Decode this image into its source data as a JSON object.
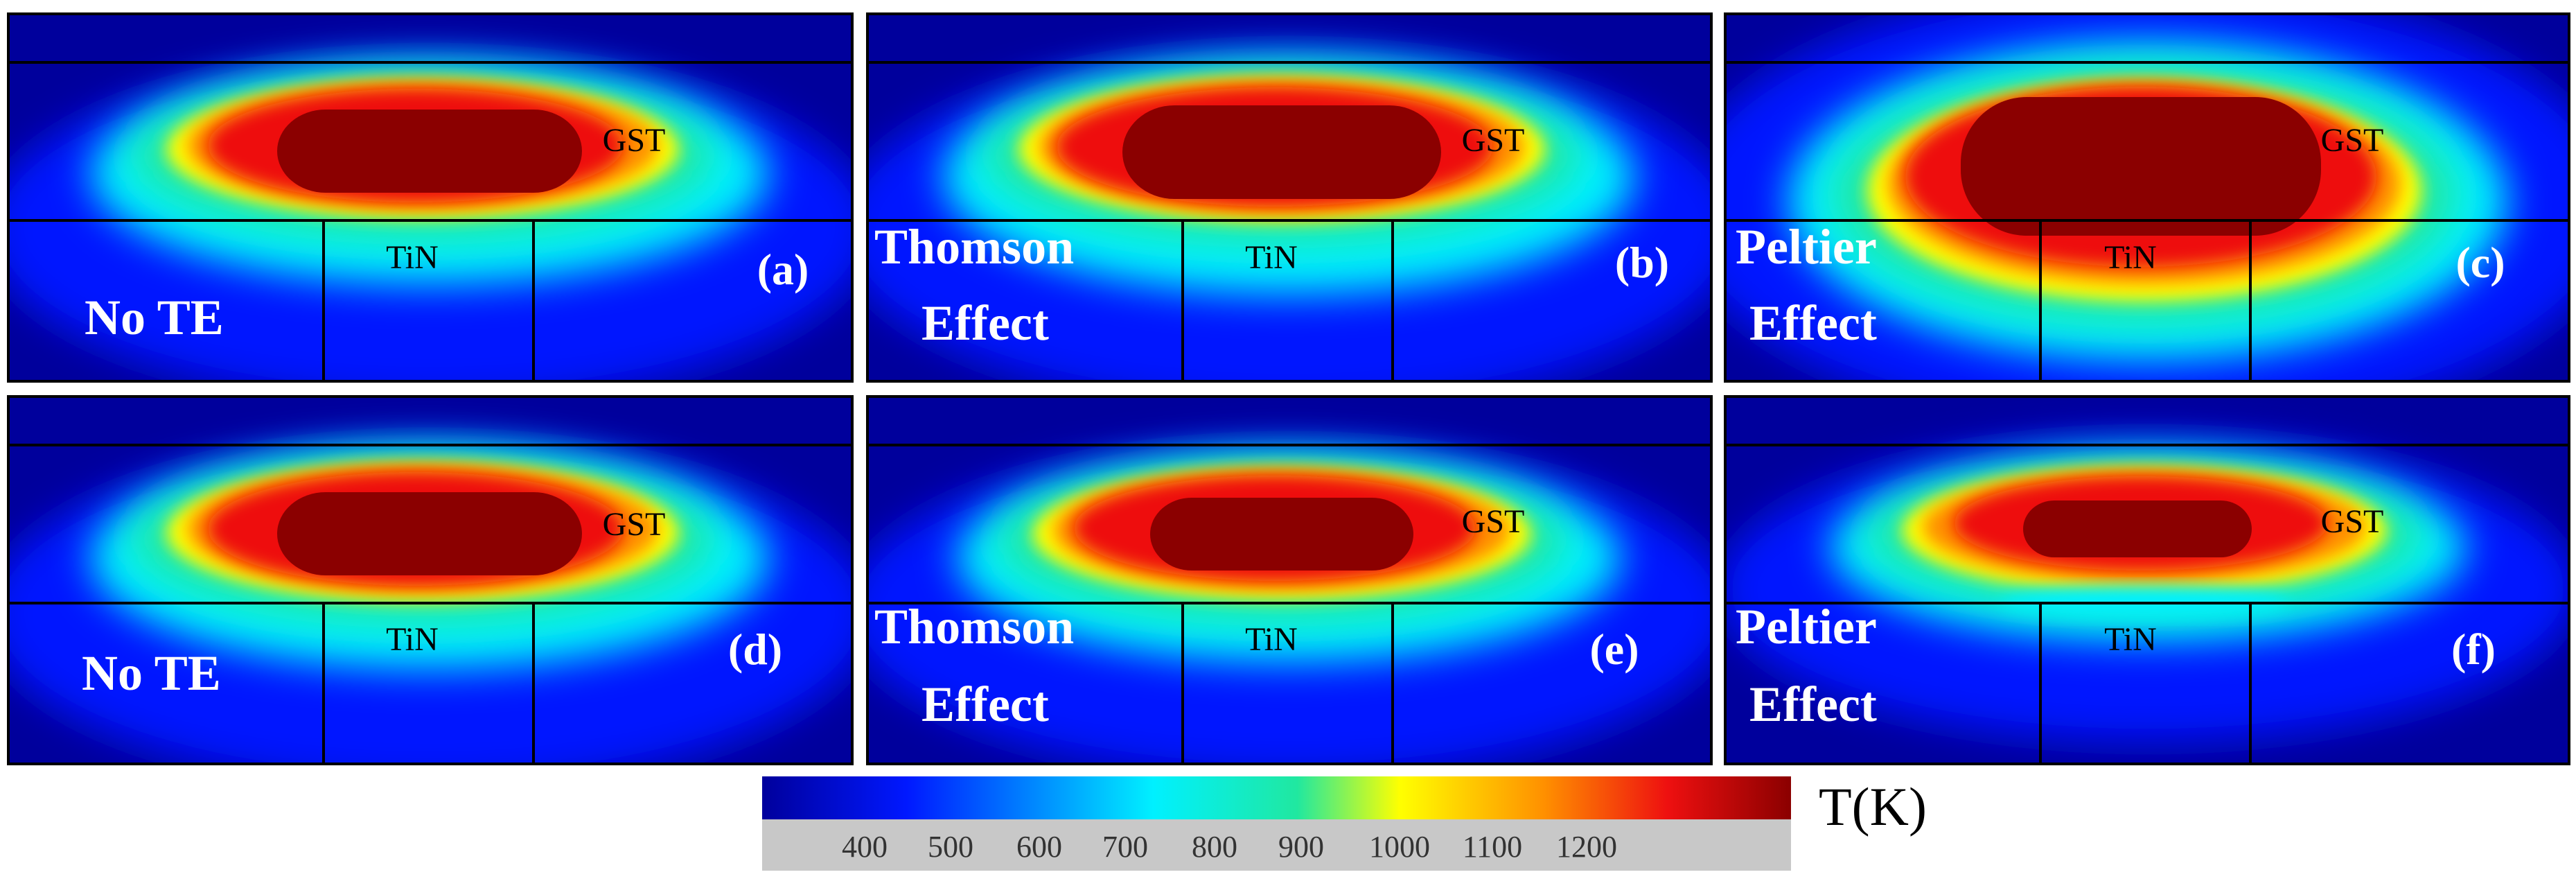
{
  "figure": {
    "colors": {
      "cold": "#00009c",
      "bright_blue": "#0018ff",
      "cyan": "#00f0ff",
      "green": "#20e8a0",
      "yellow": "#ffff00",
      "orange": "#ff9000",
      "red": "#ee1010",
      "hot": "#8b0000",
      "outline": "#000000",
      "white_text": "#ffffff",
      "colorbar_tick_band": "#c8c8c8"
    },
    "panels": [
      {
        "id": "a",
        "tag": "(a)",
        "effect_lines": [
          "No TE"
        ],
        "region_top": "GST",
        "region_bottom": "TiN"
      },
      {
        "id": "b",
        "tag": "(b)",
        "effect_lines": [
          "Thomson",
          "Effect"
        ],
        "region_top": "GST",
        "region_bottom": "TiN"
      },
      {
        "id": "c",
        "tag": "(c)",
        "effect_lines": [
          "Peltier",
          "Effect"
        ],
        "region_top": "GST",
        "region_bottom": "TiN"
      },
      {
        "id": "d",
        "tag": "(d)",
        "effect_lines": [
          "No TE"
        ],
        "region_top": "GST",
        "region_bottom": "TiN"
      },
      {
        "id": "e",
        "tag": "(e)",
        "effect_lines": [
          "Thomson",
          "Effect"
        ],
        "region_top": "GST",
        "region_bottom": "TiN"
      },
      {
        "id": "f",
        "tag": "(f)",
        "effect_lines": [
          "Peltier",
          "Effect"
        ],
        "region_top": "GST",
        "region_bottom": "TiN"
      }
    ],
    "colorbar": {
      "label": "T(K)",
      "ticks": [
        "400",
        "500",
        "600",
        "700",
        "800",
        "900",
        "1000",
        "1100",
        "1200"
      ]
    }
  }
}
